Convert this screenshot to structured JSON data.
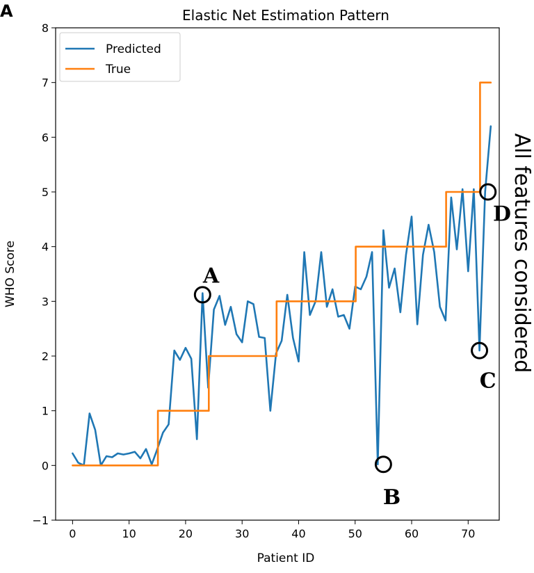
{
  "panel_label": "A",
  "side_label": "All features considered",
  "chart_data": {
    "type": "line",
    "title": "Elastic Net Estimation Pattern",
    "xlabel": "Patient ID",
    "ylabel": "WHO Score",
    "xlim": [
      -3,
      75.5
    ],
    "ylim": [
      -1,
      8
    ],
    "xticks": [
      0,
      10,
      20,
      30,
      40,
      50,
      60,
      70
    ],
    "yticks": [
      -1,
      0,
      1,
      2,
      3,
      4,
      5,
      6,
      7,
      8
    ],
    "ytick_labels": [
      "−1",
      "0",
      "1",
      "2",
      "3",
      "4",
      "5",
      "6",
      "7",
      "8"
    ],
    "grid": false,
    "legend_position": "upper-left",
    "series": [
      {
        "name": "Predicted",
        "color": "#1f77b4",
        "x": [
          0,
          1,
          2,
          3,
          4,
          5,
          6,
          7,
          8,
          9,
          10,
          11,
          12,
          13,
          14,
          15,
          16,
          17,
          18,
          19,
          20,
          21,
          22,
          23,
          24,
          25,
          26,
          27,
          28,
          29,
          30,
          31,
          32,
          33,
          34,
          35,
          36,
          37,
          38,
          39,
          40,
          41,
          42,
          43,
          44,
          45,
          46,
          47,
          48,
          49,
          50,
          51,
          52,
          53,
          54,
          55,
          56,
          57,
          58,
          59,
          60,
          61,
          62,
          63,
          64,
          65,
          66,
          67,
          68,
          69,
          70,
          71,
          72,
          73,
          74
        ],
        "y": [
          0.22,
          0.05,
          0.0,
          0.95,
          0.65,
          0.0,
          0.17,
          0.15,
          0.22,
          0.2,
          0.22,
          0.25,
          0.13,
          0.3,
          0.02,
          0.3,
          0.6,
          0.75,
          2.1,
          1.93,
          2.15,
          1.95,
          0.48,
          3.15,
          1.42,
          2.85,
          3.1,
          2.57,
          2.9,
          2.4,
          2.25,
          3.0,
          2.95,
          2.35,
          2.33,
          1.0,
          2.05,
          2.28,
          3.12,
          2.33,
          1.9,
          3.9,
          2.75,
          3.0,
          3.9,
          2.9,
          3.22,
          2.72,
          2.75,
          2.5,
          3.27,
          3.22,
          3.45,
          3.9,
          0.02,
          4.3,
          3.25,
          3.6,
          2.8,
          3.85,
          4.55,
          2.58,
          3.85,
          4.4,
          3.9,
          2.9,
          2.65,
          4.9,
          3.95,
          5.05,
          3.55,
          5.05,
          2.1,
          5.0,
          6.2
        ]
      },
      {
        "name": "True",
        "color": "#ff7f0e",
        "x": [
          0,
          15,
          15.1,
          24,
          24.1,
          36,
          36.1,
          50,
          50.1,
          66,
          66.1,
          72,
          72.1,
          73.5,
          74
        ],
        "y": [
          0,
          0,
          1,
          1,
          2,
          2,
          3,
          3,
          4,
          4,
          5,
          5,
          7,
          7,
          7
        ],
        "step": true
      }
    ],
    "annotations": [
      {
        "label": "A",
        "x": 23,
        "y": 3.12,
        "text_dx": 1.5,
        "text_dy": 0.35
      },
      {
        "label": "B",
        "x": 55,
        "y": 0.02,
        "text_dx": 1.5,
        "text_dy": -0.6
      },
      {
        "label": "C",
        "x": 72,
        "y": 2.1,
        "text_dx": 1.5,
        "text_dy": -0.55
      },
      {
        "label": "D",
        "x": 73.5,
        "y": 5.0,
        "text_dx": 2.5,
        "text_dy": -0.4
      }
    ]
  }
}
